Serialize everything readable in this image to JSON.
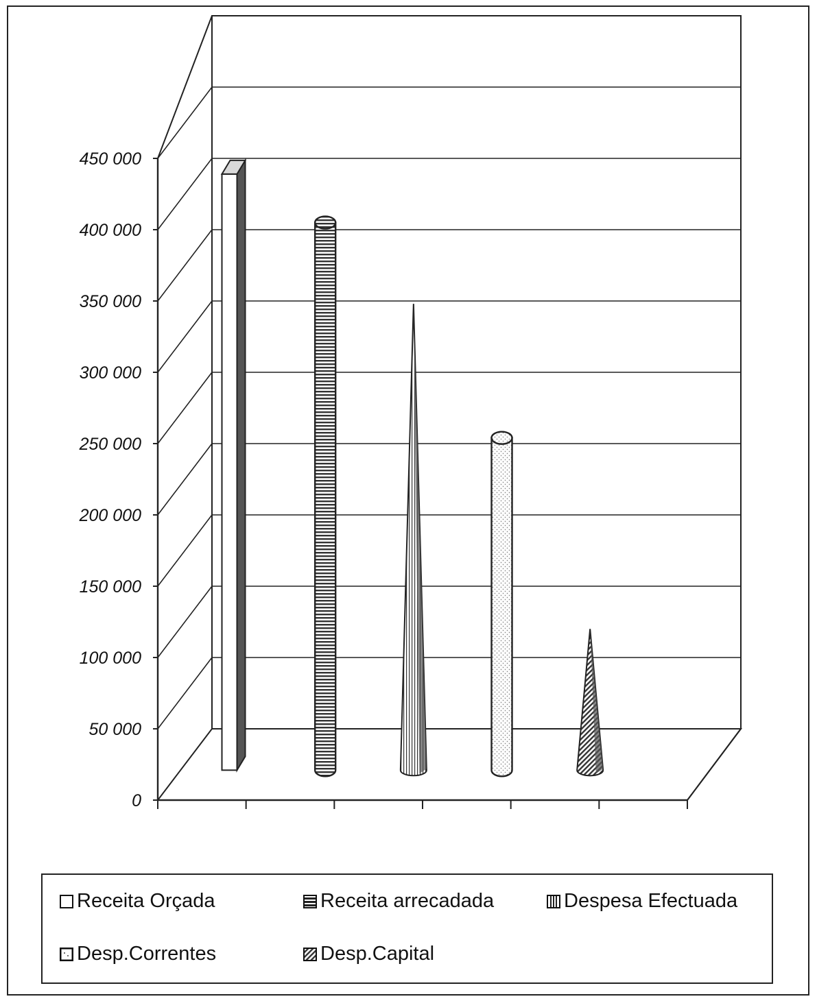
{
  "chart_data": {
    "type": "bar",
    "style": "3d-shapes",
    "title": "",
    "xlabel": "",
    "ylabel": "",
    "ylim": [
      0,
      450000
    ],
    "yticks": [
      "0",
      "50 000",
      "100 000",
      "150 000",
      "200 000",
      "250 000",
      "300 000",
      "350 000",
      "400 000",
      "450 000"
    ],
    "grid": true,
    "legend_position": "bottom",
    "series": [
      {
        "name": "Receita Orçada",
        "value": 418000,
        "shape": "box",
        "pattern": "white"
      },
      {
        "name": "Receita arrecadada",
        "value": 384000,
        "shape": "cylinder",
        "pattern": "horizontal-stripes"
      },
      {
        "name": "Despesa Efectuada",
        "value": 327000,
        "shape": "cone",
        "pattern": "vertical-stripes"
      },
      {
        "name": "Desp.Correntes",
        "value": 233000,
        "shape": "cylinder",
        "pattern": "dots"
      },
      {
        "name": "Desp.Capital",
        "value": 99000,
        "shape": "cone",
        "pattern": "diagonal-stripes"
      }
    ]
  }
}
